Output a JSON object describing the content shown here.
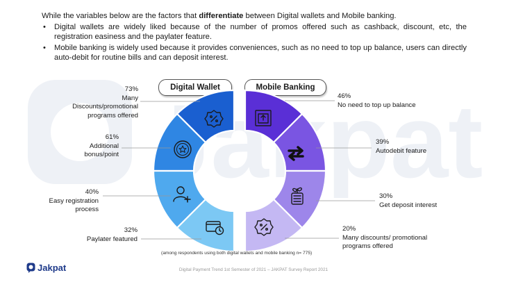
{
  "intro": {
    "lead_before": "While the variables below are the factors that ",
    "lead_bold": "differentiate",
    "lead_after": " between Digital wallets and Mobile banking.",
    "bullets": [
      "Digital wallets are widely liked because of the number of promos offered such as cashback, discount, etc, the registration easiness and the paylater feature.",
      "Mobile banking is widely used because it provides conveniences, such as no need to top up balance, users can directly auto-debit for routine bills and can deposit interest."
    ]
  },
  "headers": {
    "left": "Digital Wallet",
    "right": "Mobile Banking"
  },
  "digital_wallet": [
    {
      "pct": "73%",
      "label": "Many Discounts/promotional programs offered",
      "value": 73,
      "color": "#1a5fd0",
      "icon": "discount-badge-icon"
    },
    {
      "pct": "61%",
      "label": "Additional bonus/point",
      "value": 61,
      "color": "#2f86e3",
      "icon": "star-coin-icon"
    },
    {
      "pct": "40%",
      "label": "Easy registration process",
      "value": 40,
      "color": "#4fa9ee",
      "icon": "add-user-icon"
    },
    {
      "pct": "32%",
      "label": "Paylater featured",
      "value": 32,
      "color": "#7cc8f4",
      "icon": "card-clock-icon"
    }
  ],
  "mobile_banking": [
    {
      "pct": "46%",
      "label": "No need to top up balance",
      "value": 46,
      "color": "#5a2fd6",
      "icon": "upload-box-icon"
    },
    {
      "pct": "39%",
      "label": "Autodebit feature",
      "value": 39,
      "color": "#7a55e2",
      "icon": "swap-arrows-icon"
    },
    {
      "pct": "30%",
      "label": "Get deposit interest",
      "value": 30,
      "color": "#9d86ea",
      "icon": "money-plant-icon"
    },
    {
      "pct": "20%",
      "label": "Many discounts/ promotional programs offered",
      "value": 20,
      "color": "#c4b8f3",
      "icon": "discount-badge-icon"
    }
  ],
  "note": "(among respondents using both digital wallets and mobile banking n= 775)",
  "footer": "Digital Payment Trend 1st Semester of 2021 – JAKPAT Survey Report 2021",
  "brand": "Jakpat",
  "watermark_text": "Jakpat"
}
